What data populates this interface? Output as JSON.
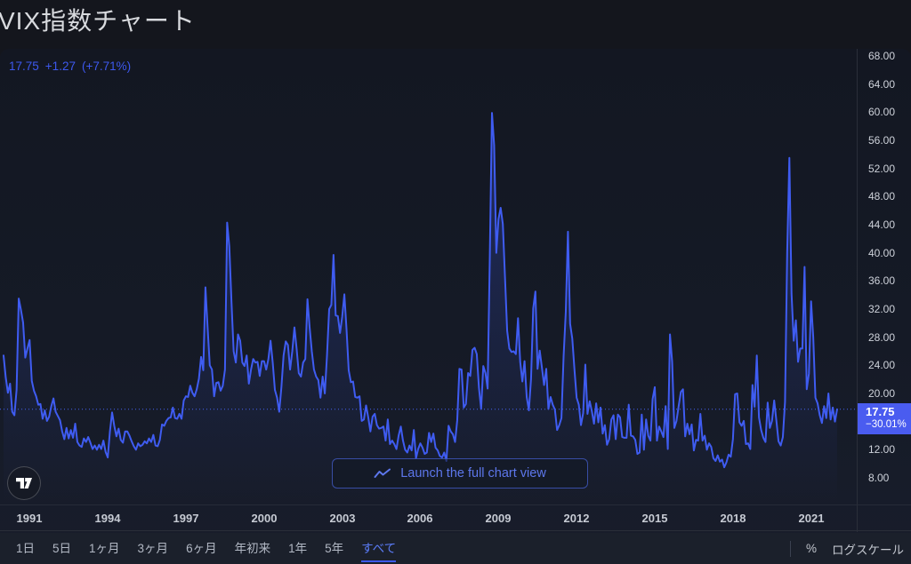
{
  "page": {
    "title": "VIX指数チャート"
  },
  "quote": {
    "last": "17.75",
    "change": "+1.27",
    "change_percent": "(+7.71%)"
  },
  "colors": {
    "line": "#3f5cf1",
    "area_fill_top": "rgba(63,92,241,0.30)",
    "price_label_bg": "#4a5cf0",
    "quote_text": "#3d58ee",
    "active_tab": "#5b7cf7",
    "widget_background": "#131722"
  },
  "y_axis": {
    "ticks": [
      "68.00",
      "64.00",
      "60.00",
      "56.00",
      "52.00",
      "48.00",
      "44.00",
      "40.00",
      "36.00",
      "32.00",
      "28.00",
      "24.00",
      "20.00",
      "12.00",
      "8.00"
    ],
    "price_label": {
      "price": "17.75",
      "change_percent": "−30.01%"
    }
  },
  "x_axis": {
    "years": [
      "1991",
      "1994",
      "1997",
      "2000",
      "2003",
      "2006",
      "2009",
      "2012",
      "2015",
      "2018",
      "2021"
    ]
  },
  "overlay": {
    "launch_button_label": "Launch the full chart view",
    "logo_name": "TradingView"
  },
  "toolbar": {
    "active_range": "すべて",
    "ranges": [
      {
        "label": "1日"
      },
      {
        "label": "5日"
      },
      {
        "label": "1ヶ月"
      },
      {
        "label": "3ヶ月"
      },
      {
        "label": "6ヶ月"
      },
      {
        "label": "年初来"
      },
      {
        "label": "1年"
      },
      {
        "label": "5年"
      },
      {
        "label": "すべて"
      }
    ],
    "right": {
      "percent_label": "%",
      "log_scale_label": "ログスケール"
    }
  },
  "chart_data": {
    "type": "line",
    "title": "VIX指数チャート",
    "series_name": "VIX",
    "frequency": "monthly",
    "start_year": 1990,
    "x_tick_years": [
      1991,
      1994,
      1997,
      2000,
      2003,
      2006,
      2009,
      2012,
      2015,
      2018,
      2021
    ],
    "ylim_visible": [
      8,
      68
    ],
    "y_tick_step": 4,
    "last_price": 17.75,
    "change_over_range_percent": -30.01,
    "grid": false,
    "legend": false,
    "values": [
      25.4,
      22.3,
      20.1,
      21.4,
      17.4,
      16.9,
      20.5,
      33.5,
      31.9,
      30.1,
      25.1,
      26.4,
      27.6,
      21.8,
      20.4,
      19.6,
      18.4,
      18.5,
      16.4,
      17.6,
      16.1,
      16.7,
      18.2,
      19.3,
      17.4,
      16.8,
      16.2,
      14.6,
      13.5,
      15.1,
      13.6,
      14.8,
      13.7,
      15.7,
      13.1,
      12.6,
      12.4,
      13.6,
      13.1,
      13.8,
      13.0,
      12.1,
      12.6,
      12.0,
      12.7,
      12.1,
      13.3,
      11.7,
      10.9,
      14.6,
      17.3,
      15.4,
      13.9,
      15.0,
      13.4,
      13.0,
      14.6,
      14.6,
      14.0,
      13.2,
      12.5,
      12.0,
      12.9,
      12.5,
      12.7,
      13.2,
      12.9,
      13.6,
      13.1,
      14.1,
      12.6,
      12.5,
      13.4,
      15.6,
      15.4,
      16.1,
      16.5,
      16.6,
      18.0,
      16.5,
      16.4,
      17.1,
      16.4,
      19.0,
      19.6,
      19.5,
      21.1,
      20.1,
      19.6,
      20.6,
      22.1,
      25.2,
      23.3,
      35.1,
      29.4,
      24.0,
      23.4,
      19.6,
      21.5,
      21.6,
      20.4,
      21.1,
      23.4,
      44.3,
      40.9,
      33.0,
      26.0,
      24.4,
      28.4,
      27.5,
      24.4,
      23.9,
      25.4,
      21.4,
      23.4,
      24.9,
      24.4,
      24.5,
      22.5,
      24.6,
      24.6,
      23.4,
      24.9,
      27.5,
      24.4,
      20.5,
      19.4,
      17.4,
      20.9,
      25.4,
      27.4,
      26.9,
      23.4,
      26.0,
      29.4,
      26.4,
      22.9,
      22.4,
      24.4,
      24.9,
      33.4,
      29.4,
      26.0,
      23.4,
      22.4,
      21.9,
      19.4,
      22.4,
      20.0,
      25.4,
      32.0,
      32.6,
      39.7,
      31.1,
      31.0,
      28.6,
      30.9,
      34.1,
      29.1,
      23.3,
      21.6,
      21.7,
      19.5,
      19.4,
      19.6,
      16.1,
      16.3,
      18.3,
      16.6,
      14.6,
      16.7,
      17.1,
      15.5,
      15.0,
      15.1,
      15.3,
      13.3,
      16.3,
      12.8,
      13.3,
      12.8,
      12.1,
      14.0,
      15.3,
      13.3,
      12.0,
      11.6,
      12.6,
      11.9,
      14.8,
      10.8,
      12.1,
      12.9,
      12.3,
      11.4,
      11.6,
      14.4,
      13.1,
      14.3,
      12.3,
      11.9,
      11.1,
      10.9,
      11.6,
      10.4,
      15.4,
      14.6,
      14.2,
      13.1,
      16.2,
      23.5,
      23.4,
      18.0,
      18.5,
      22.9,
      22.5,
      26.2,
      26.5,
      25.6,
      20.8,
      17.8,
      23.9,
      22.9,
      20.7,
      39.4,
      59.9,
      55.3,
      40.0,
      44.8,
      46.4,
      44.1,
      36.5,
      28.9,
      26.4,
      25.9,
      26.0,
      25.6,
      30.7,
      24.5,
      21.7,
      24.6,
      19.5,
      17.6,
      22.1,
      32.1,
      34.5,
      23.5,
      26.1,
      23.7,
      21.2,
      23.5,
      17.8,
      19.5,
      18.4,
      17.7,
      14.8,
      15.5,
      16.5,
      25.3,
      31.6,
      43.0,
      29.9,
      27.8,
      23.4,
      19.4,
      18.4,
      15.5,
      17.2,
      24.1,
      17.1,
      18.9,
      17.5,
      15.7,
      18.6,
      15.9,
      18.0,
      14.3,
      15.5,
      12.7,
      13.5,
      16.3,
      16.9,
      13.5,
      17.0,
      16.6,
      13.8,
      13.7,
      13.7,
      18.4,
      14.0,
      13.9,
      13.4,
      11.4,
      11.6,
      17.0,
      12.0,
      16.3,
      14.0,
      13.3,
      19.2,
      20.9,
      13.3,
      15.3,
      14.6,
      13.8,
      18.2,
      12.1,
      28.4,
      24.5,
      15.1,
      16.1,
      18.2,
      20.2,
      20.6,
      13.9,
      15.7,
      14.2,
      15.6,
      11.9,
      13.4,
      13.3,
      17.1,
      13.3,
      14.0,
      12.0,
      12.9,
      12.4,
      10.8,
      10.4,
      11.2,
      10.3,
      10.6,
      9.5,
      10.2,
      11.3,
      11.0,
      13.5,
      19.9,
      20.0,
      15.9,
      15.4,
      16.1,
      12.8,
      12.9,
      12.1,
      21.2,
      18.1,
      25.4,
      16.6,
      14.8,
      13.7,
      13.1,
      18.7,
      15.1,
      16.1,
      19.0,
      16.2,
      13.2,
      12.6,
      13.8,
      18.8,
      40.1,
      53.5,
      34.2,
      27.5,
      30.4,
      24.5,
      26.4,
      26.4,
      38.0,
      20.6,
      22.8,
      33.1,
      28.0,
      19.4,
      18.6,
      16.9,
      15.8,
      18.2,
      16.5,
      20.0,
      16.3,
      18.0,
      16.0,
      17.75
    ]
  }
}
